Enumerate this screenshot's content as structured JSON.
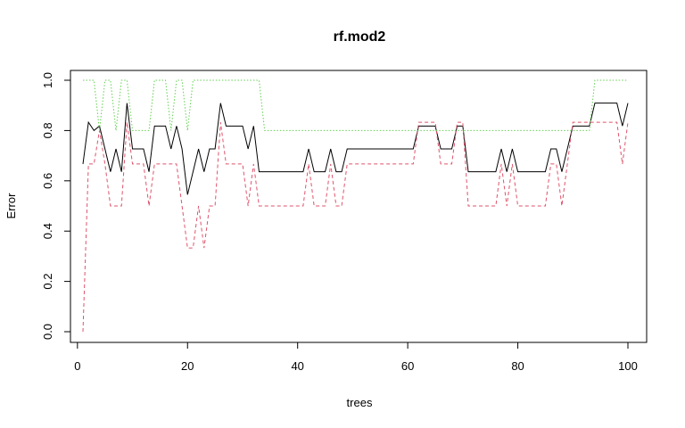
{
  "chart_data": {
    "type": "line",
    "title": "rf.mod2",
    "xlabel": "trees",
    "ylabel": "Error",
    "xlim": [
      1,
      100
    ],
    "ylim": [
      0,
      1
    ],
    "x_ticks": [
      0,
      20,
      40,
      60,
      80,
      100
    ],
    "x_tick_labels": [
      "0",
      "20",
      "40",
      "60",
      "80",
      "100"
    ],
    "y_ticks": [
      0,
      0.2,
      0.4,
      0.6,
      0.8,
      1.0
    ],
    "y_tick_labels": [
      "0.0",
      "0.2",
      "0.4",
      "0.6",
      "0.8",
      "1.0"
    ],
    "grid": false,
    "legend": "none",
    "series": [
      {
        "color": "#000000",
        "dash": "solid",
        "values": [
          0.667,
          0.833,
          0.8,
          0.818,
          0.727,
          0.636,
          0.727,
          0.636,
          0.909,
          0.727,
          0.727,
          0.727,
          0.636,
          0.818,
          0.818,
          0.818,
          0.727,
          0.818,
          0.727,
          0.545,
          0.636,
          0.727,
          0.636,
          0.727,
          0.727,
          0.909,
          0.818,
          0.818,
          0.818,
          0.818,
          0.727,
          0.818,
          0.636,
          0.636,
          0.636,
          0.636,
          0.636,
          0.636,
          0.636,
          0.636,
          0.636,
          0.727,
          0.636,
          0.636,
          0.636,
          0.727,
          0.636,
          0.636,
          0.727,
          0.727,
          0.727,
          0.727,
          0.727,
          0.727,
          0.727,
          0.727,
          0.727,
          0.727,
          0.727,
          0.727,
          0.727,
          0.818,
          0.818,
          0.818,
          0.818,
          0.727,
          0.727,
          0.727,
          0.818,
          0.818,
          0.636,
          0.636,
          0.636,
          0.636,
          0.636,
          0.636,
          0.727,
          0.636,
          0.727,
          0.636,
          0.636,
          0.636,
          0.636,
          0.636,
          0.636,
          0.727,
          0.727,
          0.636,
          0.727,
          0.818,
          0.818,
          0.818,
          0.818,
          0.909,
          0.909,
          0.909,
          0.909,
          0.909,
          0.818,
          0.909
        ]
      },
      {
        "color": "#DF536B",
        "dash": "dashed",
        "values": [
          0.0,
          0.667,
          0.667,
          0.8,
          0.667,
          0.5,
          0.5,
          0.5,
          0.833,
          0.667,
          0.667,
          0.667,
          0.5,
          0.667,
          0.667,
          0.667,
          0.667,
          0.667,
          0.5,
          0.333,
          0.333,
          0.5,
          0.333,
          0.5,
          0.5,
          0.833,
          0.667,
          0.667,
          0.667,
          0.667,
          0.5,
          0.667,
          0.5,
          0.5,
          0.5,
          0.5,
          0.5,
          0.5,
          0.5,
          0.5,
          0.5,
          0.667,
          0.5,
          0.5,
          0.5,
          0.667,
          0.5,
          0.5,
          0.667,
          0.667,
          0.667,
          0.667,
          0.667,
          0.667,
          0.667,
          0.667,
          0.667,
          0.667,
          0.667,
          0.667,
          0.667,
          0.833,
          0.833,
          0.833,
          0.833,
          0.667,
          0.667,
          0.667,
          0.833,
          0.833,
          0.5,
          0.5,
          0.5,
          0.5,
          0.5,
          0.5,
          0.667,
          0.5,
          0.667,
          0.5,
          0.5,
          0.5,
          0.5,
          0.5,
          0.5,
          0.667,
          0.667,
          0.5,
          0.667,
          0.833,
          0.833,
          0.833,
          0.833,
          0.833,
          0.833,
          0.833,
          0.833,
          0.833,
          0.667,
          0.833
        ]
      },
      {
        "color": "#61D04F",
        "dash": "dotted",
        "values": [
          1.0,
          1.0,
          1.0,
          0.8,
          1.0,
          1.0,
          0.8,
          1.0,
          1.0,
          0.8,
          0.8,
          0.8,
          0.8,
          1.0,
          1.0,
          1.0,
          0.8,
          1.0,
          1.0,
          0.8,
          1.0,
          1.0,
          1.0,
          1.0,
          1.0,
          1.0,
          1.0,
          1.0,
          1.0,
          1.0,
          1.0,
          1.0,
          1.0,
          0.8,
          0.8,
          0.8,
          0.8,
          0.8,
          0.8,
          0.8,
          0.8,
          0.8,
          0.8,
          0.8,
          0.8,
          0.8,
          0.8,
          0.8,
          0.8,
          0.8,
          0.8,
          0.8,
          0.8,
          0.8,
          0.8,
          0.8,
          0.8,
          0.8,
          0.8,
          0.8,
          0.8,
          0.8,
          0.8,
          0.8,
          0.8,
          0.8,
          0.8,
          0.8,
          0.8,
          0.8,
          0.8,
          0.8,
          0.8,
          0.8,
          0.8,
          0.8,
          0.8,
          0.8,
          0.8,
          0.8,
          0.8,
          0.8,
          0.8,
          0.8,
          0.8,
          0.8,
          0.8,
          0.8,
          0.8,
          0.8,
          0.8,
          0.8,
          0.8,
          1.0,
          1.0,
          1.0,
          1.0,
          1.0,
          1.0,
          1.0
        ]
      }
    ]
  }
}
